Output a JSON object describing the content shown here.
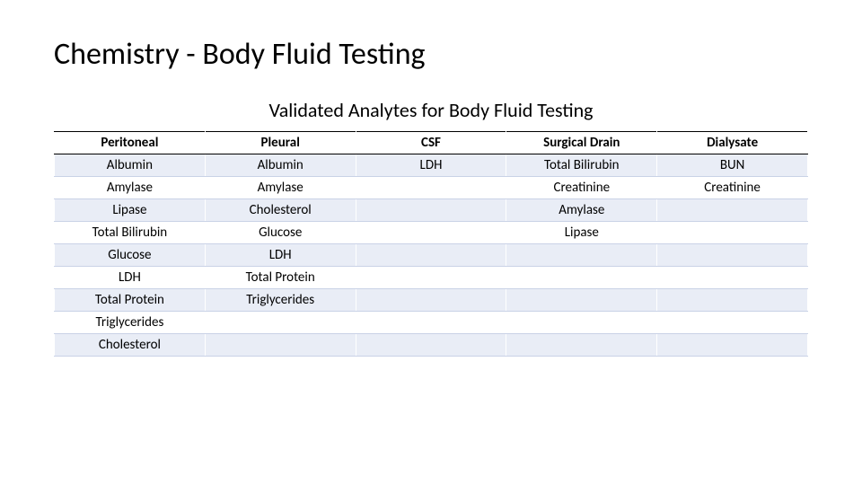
{
  "title": "Chemistry - Body Fluid Testing",
  "subtitle": "Validated Analytes for Body Fluid Testing",
  "table": {
    "type": "table",
    "columns": [
      "Peritoneal",
      "Pleural",
      "CSF",
      "Surgical Drain",
      "Dialysate"
    ],
    "rows": [
      [
        "Albumin",
        "Albumin",
        "LDH",
        "Total Bilirubin",
        "BUN"
      ],
      [
        "Amylase",
        "Amylase",
        "",
        "Creatinine",
        "Creatinine"
      ],
      [
        "Lipase",
        "Cholesterol",
        "",
        "Amylase",
        ""
      ],
      [
        "Total Bilirubin",
        "Glucose",
        "",
        "Lipase",
        ""
      ],
      [
        "Glucose",
        "LDH",
        "",
        "",
        ""
      ],
      [
        "LDH",
        "Total Protein",
        "",
        "",
        ""
      ],
      [
        "Total Protein",
        "Triglycerides",
        "",
        "",
        ""
      ],
      [
        "Triglycerides",
        "",
        "",
        "",
        ""
      ],
      [
        "Cholesterol",
        "",
        "",
        "",
        ""
      ]
    ],
    "header_bg": "#ffffff",
    "row_odd_bg": "#e9edf6",
    "row_even_bg": "#ffffff",
    "border_color": "#000000",
    "row_border_color": "#c9d2e6",
    "font_size_header": 15,
    "font_size_cell": 15,
    "title_fontsize": 34,
    "subtitle_fontsize": 22
  }
}
